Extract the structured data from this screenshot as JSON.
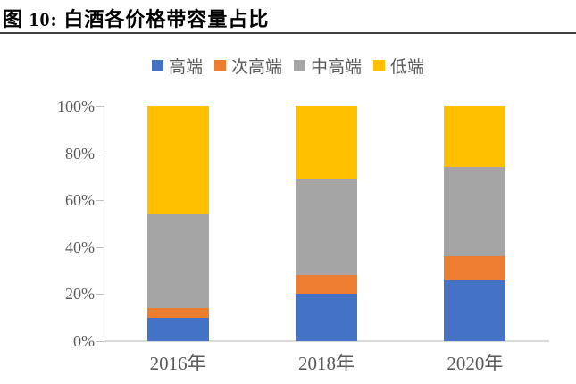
{
  "figure": {
    "title": "图 10:  白酒各价格带容量占比"
  },
  "chart_data": {
    "type": "bar",
    "stacked": true,
    "title": "白酒各价格带容量占比",
    "categories": [
      "2016年",
      "2018年",
      "2020年"
    ],
    "series": [
      {
        "name": "高端",
        "color": "#4472C4",
        "values": [
          10,
          20,
          26
        ]
      },
      {
        "name": "次高端",
        "color": "#ED7D31",
        "values": [
          4,
          8,
          10
        ]
      },
      {
        "name": "中高端",
        "color": "#A5A5A5",
        "values": [
          40,
          41,
          38
        ]
      },
      {
        "name": "低端",
        "color": "#FFC000",
        "values": [
          46,
          31,
          26
        ]
      }
    ],
    "xlabel": "",
    "ylabel": "",
    "ylim": [
      0,
      100
    ],
    "ytick_step": 20,
    "ytick_labels": [
      "0%",
      "20%",
      "40%",
      "60%",
      "80%",
      "100%"
    ],
    "legend_position": "top",
    "grid": false,
    "axis_color": "#BFBFBF",
    "baseline_color": "#D9D9D9",
    "tick_label_color": "#595959"
  }
}
